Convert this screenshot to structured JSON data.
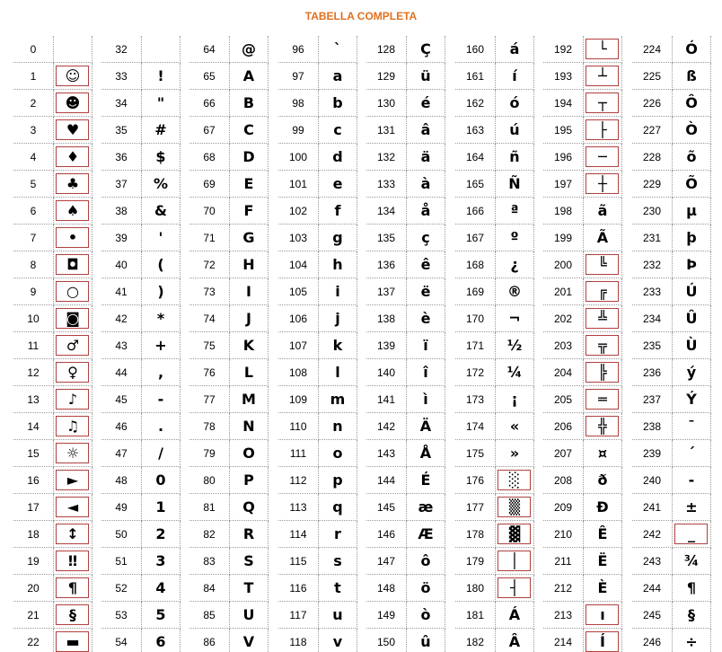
{
  "title": "TABELLA COMPLETA",
  "columns": [
    {
      "codes": [
        0,
        1,
        2,
        3,
        4,
        5,
        6,
        7,
        8,
        9,
        10,
        11,
        12,
        13,
        14,
        15,
        16,
        17,
        18,
        19,
        20,
        21,
        22
      ],
      "chars": [
        null,
        "☺",
        "☻",
        "♥",
        "♦",
        "♣",
        "♠",
        "•",
        "◘",
        "○",
        "◙",
        "♂",
        "♀",
        "♪",
        "♫",
        "☼",
        "►",
        "◄",
        "↕",
        "‼",
        "¶",
        "§",
        "▬"
      ]
    },
    {
      "codes": [
        32,
        33,
        34,
        35,
        36,
        37,
        38,
        39,
        40,
        41,
        42,
        43,
        44,
        45,
        46,
        47,
        48,
        49,
        50,
        51,
        52,
        53,
        54
      ],
      "chars": [
        null,
        "!",
        "\"",
        "#",
        "$",
        "%",
        "&",
        "'",
        "(",
        ")",
        "*",
        "+",
        ",",
        "-",
        ".",
        "/",
        "0",
        "1",
        "2",
        "3",
        "4",
        "5",
        "6"
      ]
    },
    {
      "codes": [
        64,
        65,
        66,
        67,
        68,
        69,
        70,
        71,
        72,
        73,
        74,
        75,
        76,
        77,
        78,
        79,
        80,
        81,
        82,
        83,
        84,
        85,
        86
      ],
      "chars": [
        "@",
        "A",
        "B",
        "C",
        "D",
        "E",
        "F",
        "G",
        "H",
        "I",
        "J",
        "K",
        "L",
        "M",
        "N",
        "O",
        "P",
        "Q",
        "R",
        "S",
        "T",
        "U",
        "V"
      ]
    },
    {
      "codes": [
        96,
        97,
        98,
        99,
        100,
        101,
        102,
        103,
        104,
        105,
        106,
        107,
        108,
        109,
        110,
        111,
        112,
        113,
        114,
        115,
        116,
        117,
        118
      ],
      "chars": [
        "`",
        "a",
        "b",
        "c",
        "d",
        "e",
        "f",
        "g",
        "h",
        "i",
        "j",
        "k",
        "l",
        "m",
        "n",
        "o",
        "p",
        "q",
        "r",
        "s",
        "t",
        "u",
        "v"
      ]
    },
    {
      "codes": [
        128,
        129,
        130,
        131,
        132,
        133,
        134,
        135,
        136,
        137,
        138,
        139,
        140,
        141,
        142,
        143,
        144,
        145,
        146,
        147,
        148,
        149,
        150
      ],
      "chars": [
        "Ç",
        "ü",
        "é",
        "â",
        "ä",
        "à",
        "å",
        "ç",
        "ê",
        "ë",
        "è",
        "ï",
        "î",
        "ì",
        "Ä",
        "Å",
        "É",
        "æ",
        "Æ",
        "ô",
        "ö",
        "ò",
        "û"
      ]
    },
    {
      "codes": [
        160,
        161,
        162,
        163,
        164,
        165,
        166,
        167,
        168,
        169,
        170,
        171,
        172,
        173,
        174,
        175,
        176,
        177,
        178,
        179,
        180,
        181,
        182
      ],
      "chars": [
        "á",
        "í",
        "ó",
        "ú",
        "ñ",
        "Ñ",
        "ª",
        "º",
        "¿",
        "®",
        "¬",
        "½",
        "¼",
        "¡",
        "«",
        "»",
        "░",
        "▒",
        "▓",
        "│",
        "┤",
        "Á",
        "Â"
      ]
    },
    {
      "codes": [
        192,
        193,
        194,
        195,
        196,
        197,
        198,
        199,
        200,
        201,
        202,
        203,
        204,
        205,
        206,
        207,
        208,
        209,
        210,
        211,
        212,
        213,
        214
      ],
      "chars": [
        "└",
        "┴",
        "┬",
        "├",
        "─",
        "┼",
        "ã",
        "Ã",
        "╚",
        "╔",
        "╩",
        "╦",
        "╠",
        "═",
        "╬",
        "¤",
        "ð",
        "Ð",
        "Ê",
        "Ë",
        "È",
        "ı",
        "Í"
      ]
    },
    {
      "codes": [
        224,
        225,
        226,
        227,
        228,
        229,
        230,
        231,
        232,
        233,
        234,
        235,
        236,
        237,
        238,
        239,
        240,
        241,
        242,
        243,
        244,
        245,
        246
      ],
      "chars": [
        "Ó",
        "ß",
        "Ô",
        "Ò",
        "õ",
        "Õ",
        "µ",
        "þ",
        "Þ",
        "Ú",
        "Û",
        "Ù",
        "ý",
        "Ý",
        "¯",
        "´",
        "-",
        "±",
        "_",
        "¾",
        "¶",
        "§",
        "÷"
      ]
    }
  ]
}
